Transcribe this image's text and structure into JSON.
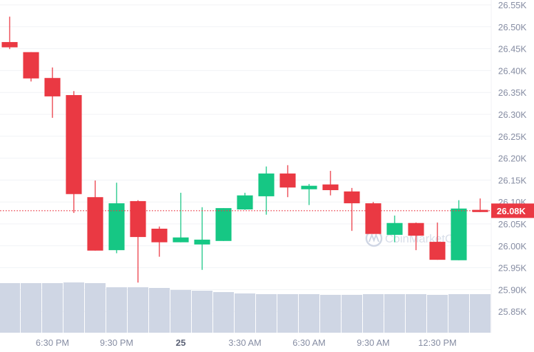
{
  "chart_data": {
    "type": "candlestick",
    "title": "",
    "xlabel": "",
    "ylabel": "",
    "ylim": [
      25.81,
      26.56
    ],
    "y_unit": "K",
    "y_ticks": [
      "26.55K",
      "26.50K",
      "26.45K",
      "26.40K",
      "26.35K",
      "26.30K",
      "26.25K",
      "26.20K",
      "26.15K",
      "26.10K",
      "26.05K",
      "26.00K",
      "25.95K",
      "25.90K",
      "25.85K"
    ],
    "y_tick_values": [
      26.55,
      26.5,
      26.45,
      26.4,
      26.35,
      26.3,
      26.25,
      26.2,
      26.15,
      26.1,
      26.05,
      26.0,
      25.95,
      25.9,
      25.85
    ],
    "x_ticks": [
      {
        "label": "6:30 PM",
        "index": 2,
        "bold": false
      },
      {
        "label": "9:30 PM",
        "index": 5,
        "bold": false
      },
      {
        "label": "25",
        "index": 8,
        "bold": true
      },
      {
        "label": "3:30 AM",
        "index": 11,
        "bold": false
      },
      {
        "label": "6:30 AM",
        "index": 14,
        "bold": false
      },
      {
        "label": "9:30 AM",
        "index": 17,
        "bold": false
      },
      {
        "label": "12:30 PM",
        "index": 20,
        "bold": false
      }
    ],
    "grid": true,
    "current_price": 26.08,
    "current_price_label": "26.08K",
    "colors": {
      "up": "#16c784",
      "down": "#ea3943",
      "volume": "#cfd6e4",
      "grid": "#f0f2f6",
      "axis_text": "#858ca2"
    },
    "watermark": "CoinMarketCap",
    "candles": [
      {
        "o": 26.465,
        "h": 26.523,
        "l": 26.449,
        "c": 26.453
      },
      {
        "o": 26.442,
        "h": 26.442,
        "l": 26.375,
        "c": 26.382
      },
      {
        "o": 26.383,
        "h": 26.407,
        "l": 26.292,
        "c": 26.341
      },
      {
        "o": 26.344,
        "h": 26.353,
        "l": 26.075,
        "c": 26.118
      },
      {
        "o": 26.111,
        "h": 26.149,
        "l": 25.989,
        "c": 25.989
      },
      {
        "o": 25.99,
        "h": 26.144,
        "l": 25.983,
        "c": 26.097
      },
      {
        "o": 26.102,
        "h": 26.104,
        "l": 25.916,
        "c": 26.02
      },
      {
        "o": 26.039,
        "h": 26.044,
        "l": 25.975,
        "c": 26.008
      },
      {
        "o": 26.008,
        "h": 26.121,
        "l": 26.008,
        "c": 26.019
      },
      {
        "o": 26.003,
        "h": 26.088,
        "l": 25.945,
        "c": 26.014
      },
      {
        "o": 26.011,
        "h": 26.086,
        "l": 26.011,
        "c": 26.086
      },
      {
        "o": 26.083,
        "h": 26.121,
        "l": 26.082,
        "c": 26.115
      },
      {
        "o": 26.113,
        "h": 26.181,
        "l": 26.071,
        "c": 26.165
      },
      {
        "o": 26.165,
        "h": 26.184,
        "l": 26.111,
        "c": 26.133
      },
      {
        "o": 26.129,
        "h": 26.141,
        "l": 26.093,
        "c": 26.137
      },
      {
        "o": 26.14,
        "h": 26.171,
        "l": 26.115,
        "c": 26.127
      },
      {
        "o": 26.124,
        "h": 26.132,
        "l": 26.034,
        "c": 26.097
      },
      {
        "o": 26.097,
        "h": 26.1,
        "l": 26.027,
        "c": 26.027
      },
      {
        "o": 26.025,
        "h": 26.069,
        "l": 26.008,
        "c": 26.052
      },
      {
        "o": 26.052,
        "h": 26.053,
        "l": 25.99,
        "c": 26.023
      },
      {
        "o": 26.009,
        "h": 26.053,
        "l": 25.968,
        "c": 25.968
      },
      {
        "o": 25.967,
        "h": 26.104,
        "l": 25.967,
        "c": 26.085
      },
      {
        "o": 26.082,
        "h": 26.108,
        "l": 26.077,
        "c": 26.077
      }
    ],
    "volume_relative": [
      72,
      72,
      72,
      73,
      72,
      66,
      66,
      65,
      62,
      61,
      59,
      57,
      56,
      56,
      56,
      55,
      55,
      56,
      56,
      56,
      55,
      56,
      56
    ]
  }
}
